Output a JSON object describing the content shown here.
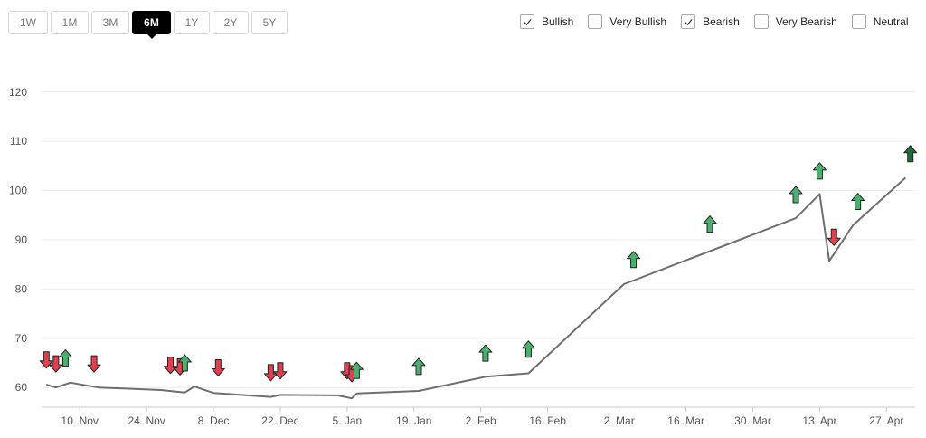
{
  "range_buttons": [
    {
      "label": "1W",
      "active": false
    },
    {
      "label": "1M",
      "active": false
    },
    {
      "label": "3M",
      "active": false
    },
    {
      "label": "6M",
      "active": true
    },
    {
      "label": "1Y",
      "active": false
    },
    {
      "label": "2Y",
      "active": false
    },
    {
      "label": "5Y",
      "active": false
    }
  ],
  "filters": [
    {
      "label": "Bullish",
      "checked": true
    },
    {
      "label": "Very Bullish",
      "checked": false
    },
    {
      "label": "Bearish",
      "checked": true
    },
    {
      "label": "Very Bearish",
      "checked": false
    },
    {
      "label": "Neutral",
      "checked": false
    }
  ],
  "colors": {
    "line": "#6e6e6e",
    "bullish": "#4caf6e",
    "bearish": "#e0414f",
    "very_bullish": "#1e6b3b",
    "grid": "#ececec",
    "axis_text": "#555555"
  },
  "chart_data": {
    "type": "line",
    "title": "",
    "xlabel": "",
    "ylabel": "",
    "ylim": [
      56,
      124
    ],
    "yticks": [
      60,
      70,
      80,
      90,
      100,
      110,
      120
    ],
    "x_range": [
      "2023-11-02",
      "2024-05-03"
    ],
    "x_ticks": [
      {
        "date": "2023-11-10",
        "label": "10. Nov"
      },
      {
        "date": "2023-11-24",
        "label": "24. Nov"
      },
      {
        "date": "2023-12-08",
        "label": "8. Dec"
      },
      {
        "date": "2023-12-22",
        "label": "22. Dec"
      },
      {
        "date": "2024-01-05",
        "label": "5. Jan"
      },
      {
        "date": "2024-01-19",
        "label": "19. Jan"
      },
      {
        "date": "2024-02-02",
        "label": "2. Feb"
      },
      {
        "date": "2024-02-16",
        "label": "16. Feb"
      },
      {
        "date": "2024-03-02",
        "label": "2. Mar"
      },
      {
        "date": "2024-03-16",
        "label": "16. Mar"
      },
      {
        "date": "2024-03-30",
        "label": "30. Mar"
      },
      {
        "date": "2024-04-13",
        "label": "13. Apr"
      },
      {
        "date": "2024-04-27",
        "label": "27. Apr"
      }
    ],
    "grid": true,
    "series": [
      {
        "points": [
          [
            "2023-11-03",
            60.6
          ],
          [
            "2023-11-05",
            60.0
          ],
          [
            "2023-11-08",
            61.0
          ],
          [
            "2023-11-14",
            60.0
          ],
          [
            "2023-11-27",
            59.5
          ],
          [
            "2023-12-02",
            59.0
          ],
          [
            "2023-12-04",
            60.2
          ],
          [
            "2023-12-08",
            58.9
          ],
          [
            "2023-12-20",
            58.1
          ],
          [
            "2023-12-22",
            58.5
          ],
          [
            "2024-01-03",
            58.4
          ],
          [
            "2024-01-06",
            57.8
          ],
          [
            "2024-01-07",
            58.8
          ],
          [
            "2024-01-20",
            59.3
          ],
          [
            "2024-02-03",
            62.2
          ],
          [
            "2024-02-12",
            62.9
          ],
          [
            "2024-03-03",
            81.0
          ],
          [
            "2024-04-08",
            94.4
          ],
          [
            "2024-04-13",
            99.3
          ],
          [
            "2024-04-15",
            85.7
          ],
          [
            "2024-04-20",
            93.0
          ],
          [
            "2024-05-01",
            102.6
          ]
        ]
      }
    ],
    "markers": [
      {
        "date": "2023-11-03",
        "value": 65.6,
        "sentiment": "bearish"
      },
      {
        "date": "2023-11-05",
        "value": 64.8,
        "sentiment": "bearish"
      },
      {
        "date": "2023-11-07",
        "value": 66.0,
        "sentiment": "bullish"
      },
      {
        "date": "2023-11-13",
        "value": 64.8,
        "sentiment": "bearish"
      },
      {
        "date": "2023-11-29",
        "value": 64.5,
        "sentiment": "bearish"
      },
      {
        "date": "2023-12-01",
        "value": 64.2,
        "sentiment": "bearish"
      },
      {
        "date": "2023-12-02",
        "value": 65.0,
        "sentiment": "bullish"
      },
      {
        "date": "2023-12-09",
        "value": 64.0,
        "sentiment": "bearish"
      },
      {
        "date": "2023-12-20",
        "value": 63.0,
        "sentiment": "bearish"
      },
      {
        "date": "2023-12-22",
        "value": 63.4,
        "sentiment": "bearish"
      },
      {
        "date": "2024-01-05",
        "value": 63.4,
        "sentiment": "bearish"
      },
      {
        "date": "2024-01-06",
        "value": 62.8,
        "sentiment": "bearish"
      },
      {
        "date": "2024-01-07",
        "value": 63.5,
        "sentiment": "bullish"
      },
      {
        "date": "2024-01-20",
        "value": 64.3,
        "sentiment": "bullish"
      },
      {
        "date": "2024-02-03",
        "value": 67.0,
        "sentiment": "bullish"
      },
      {
        "date": "2024-02-12",
        "value": 67.8,
        "sentiment": "bullish"
      },
      {
        "date": "2024-03-05",
        "value": 86.0,
        "sentiment": "bullish"
      },
      {
        "date": "2024-03-21",
        "value": 93.2,
        "sentiment": "bullish"
      },
      {
        "date": "2024-04-08",
        "value": 99.2,
        "sentiment": "bullish"
      },
      {
        "date": "2024-04-13",
        "value": 104.0,
        "sentiment": "bullish"
      },
      {
        "date": "2024-04-16",
        "value": 90.5,
        "sentiment": "bearish"
      },
      {
        "date": "2024-04-21",
        "value": 97.8,
        "sentiment": "bullish"
      },
      {
        "date": "2024-05-02",
        "value": 107.5,
        "sentiment": "very_bullish"
      }
    ]
  }
}
